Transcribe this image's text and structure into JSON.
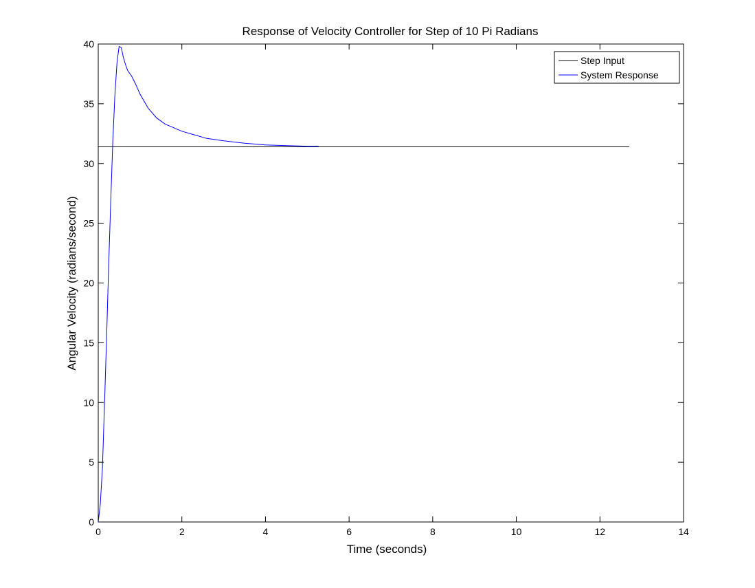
{
  "chart_data": {
    "type": "line",
    "title": "Response of Velocity Controller for Step of 10 Pi Radians",
    "xlabel": "Time (seconds)",
    "ylabel": "Angular Velocity (radians/second)",
    "xlim": [
      0,
      14
    ],
    "ylim": [
      0,
      40
    ],
    "xticks": [
      0,
      2,
      4,
      6,
      8,
      10,
      12,
      14
    ],
    "yticks": [
      0,
      5,
      10,
      15,
      20,
      25,
      30,
      35,
      40
    ],
    "grid": false,
    "legend_position": "top-right",
    "series": [
      {
        "name": "Step Input",
        "color": "#000000",
        "x": [
          0,
          12.7
        ],
        "y": [
          31.4,
          31.4
        ]
      },
      {
        "name": "System Response",
        "color": "#0000ff",
        "x": [
          0,
          0.05,
          0.1,
          0.15,
          0.2,
          0.25,
          0.3,
          0.35,
          0.4,
          0.45,
          0.5,
          0.55,
          0.6,
          0.65,
          0.7,
          0.8,
          0.9,
          1.0,
          1.2,
          1.4,
          1.6,
          1.8,
          2.0,
          2.3,
          2.6,
          3.0,
          3.5,
          4.0,
          4.5,
          5.0,
          5.27
        ],
        "y": [
          0,
          1.5,
          4.5,
          9.8,
          15.5,
          21.5,
          27.0,
          32.0,
          35.8,
          38.5,
          39.8,
          39.7,
          38.9,
          38.3,
          37.8,
          37.3,
          36.6,
          35.8,
          34.6,
          33.8,
          33.3,
          33.0,
          32.7,
          32.4,
          32.1,
          31.9,
          31.7,
          31.55,
          31.5,
          31.45,
          31.45
        ]
      }
    ]
  }
}
